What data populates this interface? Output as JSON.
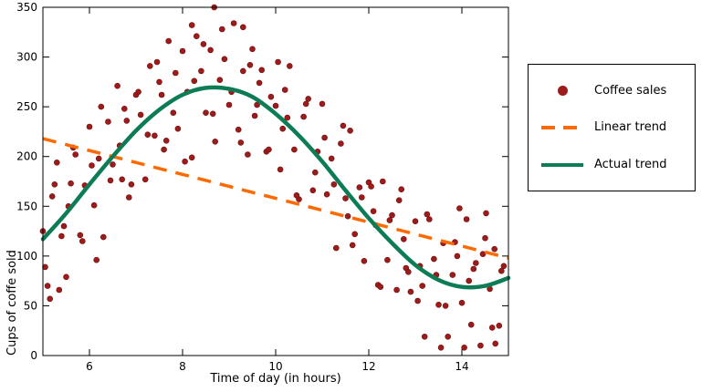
{
  "chart_data": {
    "type": "scatter",
    "title": "",
    "xlabel": "Time of day (in hours)",
    "ylabel": "Cups of coffe sold",
    "xlim": [
      5,
      15
    ],
    "ylim": [
      0,
      350
    ],
    "xticks": [
      6,
      8,
      10,
      12,
      14
    ],
    "yticks": [
      0,
      50,
      100,
      150,
      200,
      250,
      300,
      350
    ],
    "grid": false,
    "axis_color": "#000000",
    "legend": {
      "position": "outside-right",
      "entries": [
        "Coffee sales",
        "Linear trend",
        "Actual trend"
      ]
    },
    "series": [
      {
        "name": "Coffee sales",
        "kind": "scatter",
        "color": "#9e1b1b",
        "edge_color": "#6f0f0f",
        "points": [
          [
            5.0,
            125
          ],
          [
            5.1,
            70
          ],
          [
            5.2,
            160
          ],
          [
            5.3,
            194
          ],
          [
            5.4,
            120
          ],
          [
            5.5,
            79
          ],
          [
            5.6,
            173
          ],
          [
            5.7,
            202
          ],
          [
            5.8,
            121
          ],
          [
            5.9,
            171
          ],
          [
            6.0,
            230
          ],
          [
            6.1,
            151
          ],
          [
            6.2,
            198
          ],
          [
            6.3,
            119
          ],
          [
            6.4,
            235
          ],
          [
            6.5,
            192
          ],
          [
            6.6,
            271
          ],
          [
            6.7,
            177
          ],
          [
            6.8,
            236
          ],
          [
            6.9,
            172
          ],
          [
            7.0,
            262
          ],
          [
            7.1,
            242
          ],
          [
            7.2,
            177
          ],
          [
            7.3,
            291
          ],
          [
            7.4,
            221
          ],
          [
            7.5,
            275
          ],
          [
            7.6,
            207
          ],
          [
            7.7,
            316
          ],
          [
            7.8,
            244
          ],
          [
            7.9,
            228
          ],
          [
            8.0,
            306
          ],
          [
            8.1,
            265
          ],
          [
            8.2,
            199
          ],
          [
            8.3,
            321
          ],
          [
            8.4,
            286
          ],
          [
            8.5,
            244
          ],
          [
            8.6,
            307
          ],
          [
            8.7,
            215
          ],
          [
            8.8,
            277
          ],
          [
            8.9,
            298
          ],
          [
            9.0,
            252
          ],
          [
            9.1,
            334
          ],
          [
            9.2,
            227
          ],
          [
            9.3,
            286
          ],
          [
            9.4,
            202
          ],
          [
            9.5,
            308
          ],
          [
            9.6,
            252
          ],
          [
            9.7,
            287
          ],
          [
            9.8,
            205
          ],
          [
            9.9,
            260
          ],
          [
            10.0,
            251
          ],
          [
            10.1,
            187
          ],
          [
            10.2,
            267
          ],
          [
            10.3,
            291
          ],
          [
            10.4,
            207
          ],
          [
            10.5,
            157
          ],
          [
            10.6,
            240
          ],
          [
            10.7,
            258
          ],
          [
            10.8,
            166
          ],
          [
            10.9,
            205
          ],
          [
            11.0,
            253
          ],
          [
            11.1,
            162
          ],
          [
            11.2,
            198
          ],
          [
            11.3,
            108
          ],
          [
            11.4,
            213
          ],
          [
            11.5,
            158
          ],
          [
            11.6,
            226
          ],
          [
            11.7,
            122
          ],
          [
            11.8,
            169
          ],
          [
            11.9,
            95
          ],
          [
            12.0,
            174
          ],
          [
            12.1,
            145
          ],
          [
            12.2,
            71
          ],
          [
            12.3,
            175
          ],
          [
            12.4,
            96
          ],
          [
            12.5,
            141
          ],
          [
            12.6,
            66
          ],
          [
            12.7,
            167
          ],
          [
            12.8,
            88
          ],
          [
            12.9,
            64
          ],
          [
            13.0,
            135
          ],
          [
            13.1,
            90
          ],
          [
            13.2,
            19
          ],
          [
            13.3,
            137
          ],
          [
            13.4,
            97
          ],
          [
            13.5,
            51
          ],
          [
            13.6,
            113
          ],
          [
            13.7,
            19
          ],
          [
            13.8,
            81
          ],
          [
            13.9,
            100
          ],
          [
            14.0,
            53
          ],
          [
            14.1,
            137
          ],
          [
            14.2,
            31
          ],
          [
            14.3,
            93
          ],
          [
            14.4,
            10
          ],
          [
            14.5,
            118
          ],
          [
            14.6,
            67
          ],
          [
            14.7,
            107
          ],
          [
            14.8,
            30
          ],
          [
            14.9,
            90
          ],
          [
            5.05,
            89
          ],
          [
            5.25,
            172
          ],
          [
            5.45,
            130
          ],
          [
            5.65,
            209
          ],
          [
            5.85,
            115
          ],
          [
            6.05,
            191
          ],
          [
            6.25,
            250
          ],
          [
            6.45,
            176
          ],
          [
            6.65,
            211
          ],
          [
            6.85,
            159
          ],
          [
            7.05,
            265
          ],
          [
            7.25,
            222
          ],
          [
            7.45,
            295
          ],
          [
            7.65,
            216
          ],
          [
            7.85,
            284
          ],
          [
            8.05,
            195
          ],
          [
            8.25,
            276
          ],
          [
            8.45,
            313
          ],
          [
            8.65,
            243
          ],
          [
            8.85,
            328
          ],
          [
            9.05,
            265
          ],
          [
            9.25,
            214
          ],
          [
            9.45,
            292
          ],
          [
            9.65,
            274
          ],
          [
            9.85,
            207
          ],
          [
            10.05,
            295
          ],
          [
            10.25,
            239
          ],
          [
            10.45,
            161
          ],
          [
            10.65,
            253
          ],
          [
            10.85,
            184
          ],
          [
            11.05,
            219
          ],
          [
            11.25,
            172
          ],
          [
            11.45,
            231
          ],
          [
            11.65,
            111
          ],
          [
            11.85,
            159
          ],
          [
            12.05,
            170
          ],
          [
            12.25,
            69
          ],
          [
            12.45,
            136
          ],
          [
            12.65,
            156
          ],
          [
            12.85,
            84
          ],
          [
            13.05,
            55
          ],
          [
            13.25,
            142
          ],
          [
            13.45,
            81
          ],
          [
            13.65,
            50
          ],
          [
            13.85,
            114
          ],
          [
            14.05,
            8
          ],
          [
            14.25,
            87
          ],
          [
            14.45,
            102
          ],
          [
            14.65,
            28
          ],
          [
            14.85,
            85
          ],
          [
            8.68,
            350
          ],
          [
            8.2,
            332
          ],
          [
            9.3,
            330
          ],
          [
            5.15,
            57
          ],
          [
            5.35,
            66
          ],
          [
            13.55,
            8
          ],
          [
            14.72,
            12
          ],
          [
            13.95,
            148
          ],
          [
            14.52,
            143
          ],
          [
            6.15,
            96
          ],
          [
            12.15,
            131
          ],
          [
            7.55,
            262
          ],
          [
            10.15,
            228
          ],
          [
            11.55,
            140
          ],
          [
            5.55,
            150
          ],
          [
            6.75,
            248
          ],
          [
            9.55,
            241
          ],
          [
            12.75,
            117
          ],
          [
            13.15,
            70
          ],
          [
            14.15,
            75
          ]
        ]
      },
      {
        "name": "Linear trend",
        "kind": "line",
        "style": "dashed",
        "color": "#ff6a00",
        "width": 3.5,
        "points": [
          [
            5,
            218
          ],
          [
            15,
            98
          ]
        ]
      },
      {
        "name": "Actual trend",
        "kind": "line",
        "style": "solid",
        "color": "#0c7c55",
        "width": 4.5,
        "points": [
          [
            5,
            117
          ],
          [
            5.5,
            143
          ],
          [
            6,
            172
          ],
          [
            6.5,
            200
          ],
          [
            7,
            226
          ],
          [
            7.5,
            247
          ],
          [
            8,
            262
          ],
          [
            8.5,
            269
          ],
          [
            9,
            268
          ],
          [
            9.5,
            260
          ],
          [
            10,
            243
          ],
          [
            10.5,
            221
          ],
          [
            11,
            195
          ],
          [
            11.5,
            166
          ],
          [
            12,
            138
          ],
          [
            12.5,
            113
          ],
          [
            13,
            91
          ],
          [
            13.5,
            76
          ],
          [
            14,
            69
          ],
          [
            14.5,
            70
          ],
          [
            15,
            78
          ]
        ]
      }
    ]
  }
}
